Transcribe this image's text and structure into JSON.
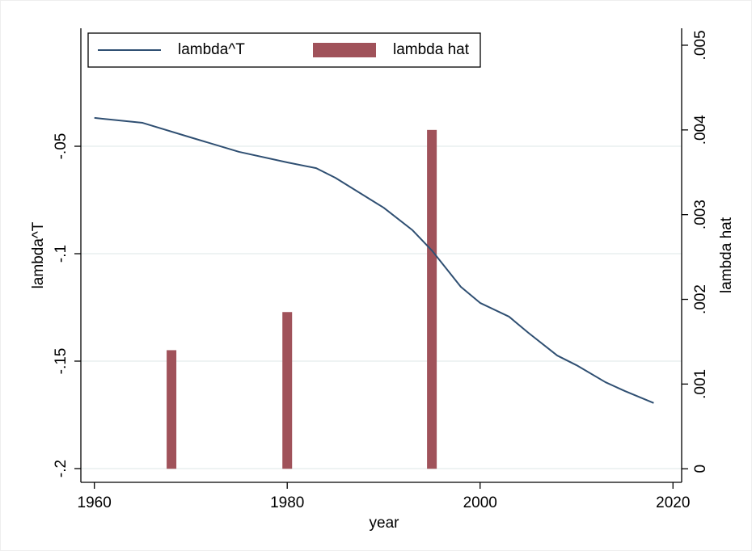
{
  "chart_data": {
    "type": "line_bar",
    "x_label": "year",
    "y_label": "lambda^T",
    "y2_label": "lambda hat",
    "xlim": [
      1958.6,
      2020.9
    ],
    "xticks": [
      1960,
      1980,
      2000,
      2020
    ],
    "ylim": [
      -0.2064,
      0.0049
    ],
    "yticks": [
      {
        "value": -0.2,
        "label": "-.2"
      },
      {
        "value": -0.15,
        "label": "-.15"
      },
      {
        "value": -0.1,
        "label": "-.1"
      },
      {
        "value": -0.05,
        "label": "-.05"
      }
    ],
    "y2lim": [
      -0.00016,
      0.0052
    ],
    "y2ticks": [
      0,
      {
        "value": 0.001,
        "label": ".001"
      },
      {
        "value": 0.002,
        "label": ".002"
      },
      {
        "value": 0.003,
        "label": ".003"
      },
      {
        "value": 0.004,
        "label": ".004"
      },
      {
        "value": 0.005,
        "label": ".005"
      }
    ],
    "grid": true,
    "legend": "top-left",
    "series": [
      {
        "name": "lambda^T",
        "type": "line",
        "color": "#2f4f72",
        "x": [
          1960,
          1965,
          1970,
          1975,
          1980,
          1983,
          1985,
          1990,
          1993,
          1995,
          1998,
          2000,
          2003,
          2005,
          2008,
          2010,
          2013,
          2015,
          2018
        ],
        "values": [
          -0.0368,
          -0.0391,
          -0.0459,
          -0.0526,
          -0.0575,
          -0.0602,
          -0.0647,
          -0.0786,
          -0.0891,
          -0.0985,
          -0.1154,
          -0.1229,
          -0.1293,
          -0.1368,
          -0.1474,
          -0.1519,
          -0.1598,
          -0.1639,
          -0.1695
        ]
      },
      {
        "name": "lambda hat",
        "type": "bar",
        "axis": "y2",
        "color": "#a0525a",
        "x": [
          1968,
          1980,
          1995
        ],
        "values": [
          0.0014,
          0.00185,
          0.004
        ]
      }
    ]
  }
}
